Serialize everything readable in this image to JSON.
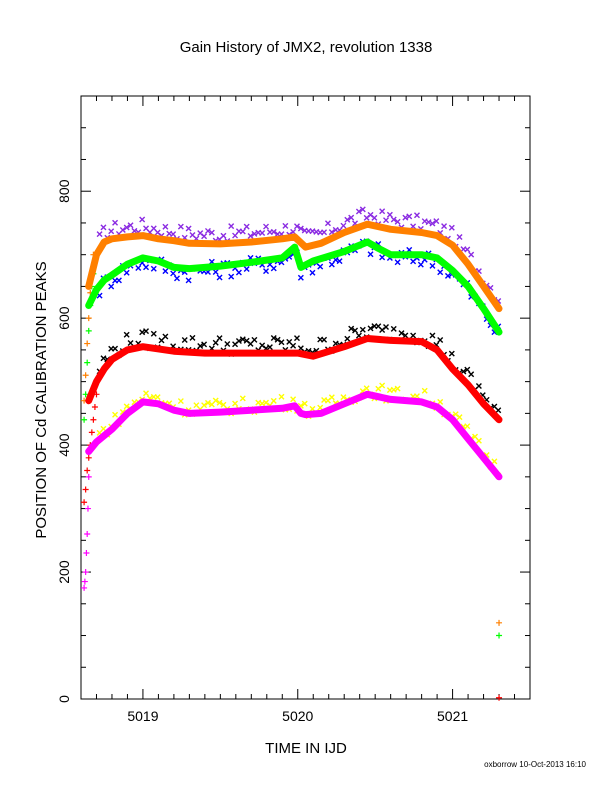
{
  "chart_data": {
    "type": "scatter",
    "title": "Gain History of JMX2, revolution 1338",
    "xlabel": "TIME IN IJD",
    "ylabel": "POSITION OF Cd CALIBRATION PEAKS",
    "credit": "oxborrow 10-Oct-2013 16:10",
    "xlim": [
      5018.6,
      5021.5
    ],
    "ylim": [
      0,
      950
    ],
    "x_ticks": [
      5019,
      5020,
      5021
    ],
    "y_ticks": [
      0,
      200,
      400,
      600,
      800
    ],
    "x_tick_labels": [
      "5019",
      "5020",
      "5021"
    ],
    "y_tick_labels": [
      "0",
      "200",
      "400",
      "600",
      "800"
    ],
    "grid": false,
    "legend": "none",
    "fit_curves": [
      {
        "color": "#ff8000",
        "x": [
          5018.65,
          5018.7,
          5018.75,
          5018.8,
          5018.9,
          5019.0,
          5019.1,
          5019.2,
          5019.3,
          5019.5,
          5019.7,
          5019.9,
          5019.98,
          5020.05,
          5020.15,
          5020.3,
          5020.45,
          5020.6,
          5020.8,
          5020.9,
          5021.0,
          5021.1,
          5021.2,
          5021.3
        ],
        "y": [
          650,
          700,
          720,
          725,
          728,
          730,
          725,
          722,
          718,
          717,
          720,
          725,
          728,
          712,
          718,
          735,
          748,
          740,
          735,
          730,
          715,
          685,
          650,
          615
        ]
      },
      {
        "color": "#00ff00",
        "x": [
          5018.65,
          5018.7,
          5018.75,
          5018.8,
          5018.9,
          5019.0,
          5019.1,
          5019.2,
          5019.3,
          5019.5,
          5019.7,
          5019.9,
          5019.98,
          5020.02,
          5020.1,
          5020.3,
          5020.45,
          5020.52,
          5020.6,
          5020.8,
          5020.9,
          5021.0,
          5021.1,
          5021.2,
          5021.3
        ],
        "y": [
          620,
          645,
          660,
          668,
          685,
          695,
          690,
          680,
          678,
          682,
          688,
          695,
          712,
          680,
          690,
          705,
          720,
          710,
          700,
          700,
          695,
          675,
          650,
          615,
          578
        ]
      },
      {
        "color": "#ff0000",
        "x": [
          5018.65,
          5018.7,
          5018.75,
          5018.8,
          5018.9,
          5019.0,
          5019.2,
          5019.4,
          5019.6,
          5019.8,
          5020.0,
          5020.1,
          5020.3,
          5020.45,
          5020.6,
          5020.8,
          5020.9,
          5021.0,
          5021.1,
          5021.2,
          5021.3
        ],
        "y": [
          470,
          500,
          520,
          535,
          550,
          555,
          548,
          545,
          545,
          545,
          545,
          540,
          555,
          568,
          565,
          563,
          550,
          520,
          495,
          465,
          440
        ]
      },
      {
        "color": "#ff00ff",
        "x": [
          5018.65,
          5018.7,
          5018.8,
          5018.9,
          5019.0,
          5019.1,
          5019.2,
          5019.3,
          5019.5,
          5019.7,
          5019.9,
          5019.98,
          5020.02,
          5020.05,
          5020.15,
          5020.3,
          5020.45,
          5020.6,
          5020.8,
          5020.9,
          5021.0,
          5021.1,
          5021.2,
          5021.3
        ],
        "y": [
          390,
          405,
          425,
          450,
          468,
          465,
          455,
          450,
          452,
          455,
          458,
          462,
          450,
          448,
          450,
          465,
          480,
          472,
          468,
          460,
          440,
          410,
          380,
          350
        ]
      }
    ],
    "scatter_series": [
      {
        "color": "#8a2be2",
        "symbol": "x",
        "base": "#ff8000",
        "offset": 15,
        "scatter": 12
      },
      {
        "color": "#0000ff",
        "symbol": "x",
        "base": "#00ff00",
        "offset": -5,
        "scatter": 14
      },
      {
        "color": "#000000",
        "symbol": "x",
        "base": "#ff0000",
        "offset": 12,
        "scatter": 14
      },
      {
        "color": "#ffff00",
        "symbol": "x",
        "base": "#ff00ff",
        "offset": 8,
        "scatter": 12
      }
    ],
    "rise_series": [
      {
        "color": "#ff8000",
        "symbol": "+",
        "x": [
          5018.62,
          5018.63,
          5018.64,
          5018.65,
          5018.66,
          5018.67,
          5018.68
        ],
        "y": [
          470,
          510,
          560,
          600,
          640,
          670,
          700
        ]
      },
      {
        "color": "#00ff00",
        "symbol": "+",
        "x": [
          5018.62,
          5018.63,
          5018.64,
          5018.65,
          5018.66,
          5018.67,
          5018.68
        ],
        "y": [
          440,
          480,
          530,
          580,
          620,
          650,
          670
        ]
      },
      {
        "color": "#ff0000",
        "symbol": "+",
        "x": [
          5018.62,
          5018.63,
          5018.64,
          5018.65,
          5018.66,
          5018.67,
          5018.68,
          5018.69,
          5018.7
        ],
        "y": [
          310,
          330,
          360,
          380,
          400,
          420,
          440,
          460,
          480
        ]
      },
      {
        "color": "#ff00ff",
        "symbol": "+",
        "x": [
          5018.62,
          5018.625,
          5018.63,
          5018.635,
          5018.64,
          5018.645,
          5018.65
        ],
        "y": [
          175,
          185,
          200,
          230,
          260,
          300,
          350
        ]
      }
    ],
    "outliers": [
      {
        "color": "#ff8000",
        "symbol": "+",
        "x": 5021.3,
        "y": 120
      },
      {
        "color": "#00ff00",
        "symbol": "+",
        "x": 5021.3,
        "y": 100
      },
      {
        "color": "#ff0000",
        "symbol": "+",
        "x": 5021.3,
        "y": 2
      }
    ]
  }
}
